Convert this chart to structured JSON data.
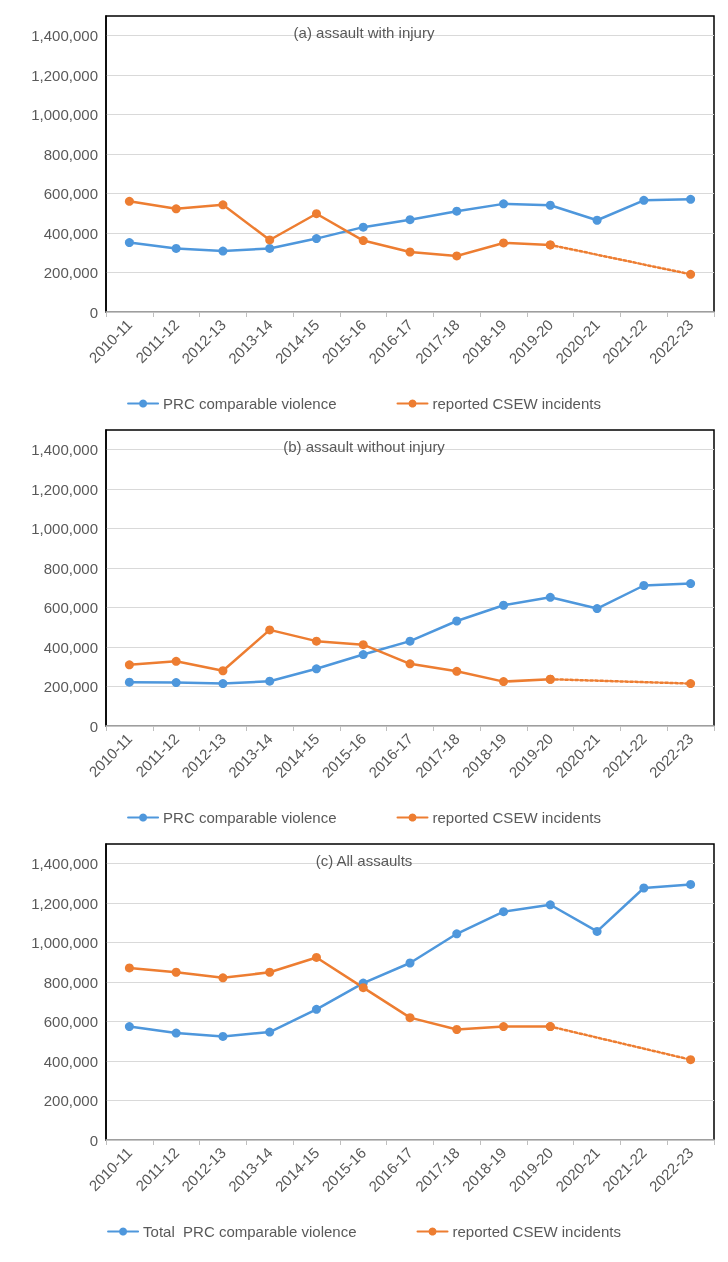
{
  "chart_data": [
    {
      "type": "line",
      "title": "(a) assault with injury",
      "categories": [
        "2010-11",
        "2011-12",
        "2012-13",
        "2013-14",
        "2014-15",
        "2015-16",
        "2016-17",
        "2017-18",
        "2018-19",
        "2019-20",
        "2020-21",
        "2021-22",
        "2022-23"
      ],
      "series": [
        {
          "name": "PRC comparable violence",
          "color": "#4e97dc",
          "values": [
            352000,
            322000,
            309000,
            322000,
            372000,
            430000,
            468000,
            511000,
            548000,
            541000,
            465000,
            566000,
            571000
          ]
        },
        {
          "name": "reported CSEW incidents",
          "color": "#ed7d31",
          "values": [
            561000,
            523000,
            543000,
            365000,
            498000,
            362000,
            304000,
            284000,
            350000,
            340000,
            null,
            null,
            null
          ]
        },
        {
          "color": "#ed7d31",
          "line_style": "dotted",
          "x": [
            "2019-20",
            "2022-23"
          ],
          "values": [
            340000,
            191000
          ]
        }
      ],
      "ylim": [
        0,
        1500000
      ],
      "yticks": [
        {
          "value": 0,
          "label": "0"
        },
        {
          "value": 200000,
          "label": "200,000"
        },
        {
          "value": 400000,
          "label": "400,000"
        },
        {
          "value": 600000,
          "label": "600,000"
        },
        {
          "value": 800000,
          "label": "800,000"
        },
        {
          "value": 1000000,
          "label": "1,000,000"
        },
        {
          "value": 1200000,
          "label": "1,200,000"
        },
        {
          "value": 1400000,
          "label": "1,400,000"
        }
      ],
      "grid": "y",
      "legend": "bottom",
      "marker": "circle",
      "line_style": "solid"
    },
    {
      "type": "line",
      "title": "(b) assault without injury",
      "categories": [
        "2010-11",
        "2011-12",
        "2012-13",
        "2013-14",
        "2014-15",
        "2015-16",
        "2016-17",
        "2017-18",
        "2018-19",
        "2019-20",
        "2020-21",
        "2021-22",
        "2022-23"
      ],
      "series": [
        {
          "name": "PRC comparable violence",
          "color": "#4e97dc",
          "values": [
            222000,
            220000,
            215000,
            227000,
            290000,
            362000,
            430000,
            532000,
            612000,
            652000,
            595000,
            712000,
            722000
          ]
        },
        {
          "name": "reported CSEW incidents",
          "color": "#ed7d31",
          "values": [
            310000,
            328000,
            280000,
            487000,
            430000,
            412000,
            315000,
            277000,
            225000,
            237000,
            null,
            null,
            null
          ]
        },
        {
          "color": "#ed7d31",
          "line_style": "dotted",
          "x": [
            "2019-20",
            "2022-23"
          ],
          "values": [
            237000,
            215000
          ]
        }
      ],
      "ylim": [
        0,
        1500000
      ],
      "yticks": [
        {
          "value": 0,
          "label": "0"
        },
        {
          "value": 200000,
          "label": "200,000"
        },
        {
          "value": 400000,
          "label": "400,000"
        },
        {
          "value": 600000,
          "label": "600,000"
        },
        {
          "value": 800000,
          "label": "800,000"
        },
        {
          "value": 1000000,
          "label": "1,000,000"
        },
        {
          "value": 1200000,
          "label": "1,200,000"
        },
        {
          "value": 1400000,
          "label": "1,400,000"
        }
      ],
      "grid": "y",
      "legend": "bottom",
      "marker": "circle",
      "line_style": "solid"
    },
    {
      "type": "line",
      "title": "(c) All assaults",
      "categories": [
        "2010-11",
        "2011-12",
        "2012-13",
        "2013-14",
        "2014-15",
        "2015-16",
        "2016-17",
        "2017-18",
        "2018-19",
        "2019-20",
        "2020-21",
        "2021-22",
        "2022-23"
      ],
      "series": [
        {
          "name": "Total  PRC comparable violence",
          "color": "#4e97dc",
          "values": [
            575000,
            542000,
            525000,
            547000,
            662000,
            795000,
            897000,
            1045000,
            1157000,
            1192000,
            1057000,
            1277000,
            1295000
          ]
        },
        {
          "name": "reported CSEW incidents",
          "color": "#ed7d31",
          "values": [
            872000,
            850000,
            822000,
            850000,
            925000,
            772000,
            620000,
            560000,
            575000,
            575000,
            null,
            null,
            null
          ]
        },
        {
          "color": "#ed7d31",
          "line_style": "dotted",
          "x": [
            "2019-20",
            "2022-23"
          ],
          "values": [
            575000,
            407000
          ]
        }
      ],
      "ylim": [
        0,
        1500000
      ],
      "yticks": [
        {
          "value": 0,
          "label": "0"
        },
        {
          "value": 200000,
          "label": "200,000"
        },
        {
          "value": 400000,
          "label": "400,000"
        },
        {
          "value": 600000,
          "label": "600,000"
        },
        {
          "value": 800000,
          "label": "800,000"
        },
        {
          "value": 1000000,
          "label": "1,000,000"
        },
        {
          "value": 1200000,
          "label": "1,200,000"
        },
        {
          "value": 1400000,
          "label": "1,400,000"
        }
      ],
      "grid": "y",
      "legend": "bottom",
      "marker": "circle",
      "line_style": "solid"
    }
  ]
}
